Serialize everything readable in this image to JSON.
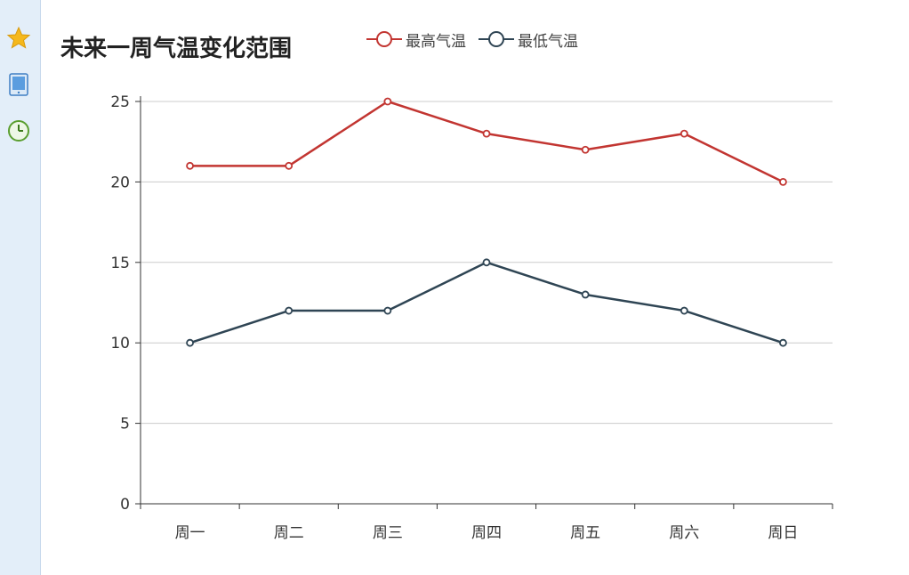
{
  "sidebar": {
    "items": [
      {
        "icon": "star-icon",
        "color": "#f5b81c"
      },
      {
        "icon": "tablet-icon",
        "color": "#4a90d9"
      },
      {
        "icon": "clock-icon",
        "color": "#5a9e2f"
      }
    ]
  },
  "chart_data": {
    "type": "line",
    "title": "未来一周气温变化范围",
    "categories": [
      "周一",
      "周二",
      "周三",
      "周四",
      "周五",
      "周六",
      "周日"
    ],
    "series": [
      {
        "name": "最高气温",
        "values": [
          21,
          21,
          25,
          23,
          22,
          23,
          20
        ],
        "color": "#c23531"
      },
      {
        "name": "最低气温",
        "values": [
          10,
          12,
          12,
          15,
          13,
          12,
          10
        ],
        "color": "#2f4554"
      }
    ],
    "yticks": [
      "0",
      "5",
      "10",
      "15",
      "20",
      "25"
    ],
    "ylim": [
      0,
      25
    ],
    "grid": true,
    "legend_position": "top"
  }
}
